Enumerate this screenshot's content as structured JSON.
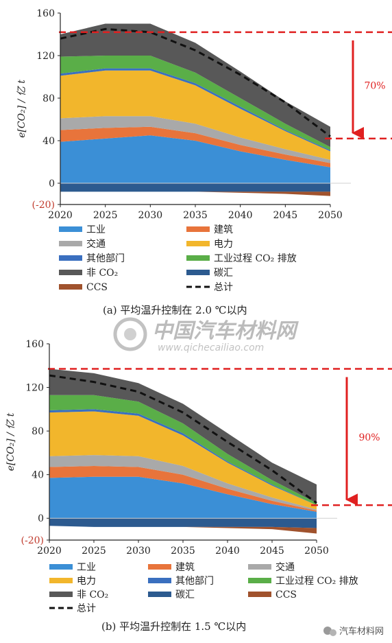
{
  "colors": {
    "industry": "#3b8fd6",
    "building": "#e8743b",
    "transport": "#a9a9a9",
    "power": "#f2b62c",
    "other_sectors": "#3a6fbf",
    "industrial_process": "#5aae48",
    "non_co2": "#585858",
    "carbon_sink": "#2c5a8f",
    "ccs": "#a0522d",
    "reduction_marker": "#e02020",
    "total_line": "#111111"
  },
  "watermark": {
    "cn": "中国汽车材料网",
    "en": "www.qichecailiao.com"
  },
  "wechat_label": "汽车材料网",
  "chart_data": [
    {
      "id": "a",
      "type": "area",
      "caption": "(a) 平均温升控制在 2.0 ℃以内",
      "ylabel": "e[CO₂] / 亿 t",
      "ylim": [
        -20,
        160
      ],
      "yticks": [
        "(-20)",
        "0",
        "40",
        "80",
        "120",
        "160"
      ],
      "x": [
        "2020",
        "2025",
        "2030",
        "2035",
        "2040",
        "2045",
        "2050"
      ],
      "series": [
        {
          "name": "工业",
          "color_key": "industry",
          "side": "pos",
          "values": [
            39,
            42,
            45,
            40,
            30,
            22,
            15
          ]
        },
        {
          "name": "建筑",
          "color_key": "building",
          "side": "pos",
          "values": [
            11,
            10,
            8,
            7,
            6,
            5,
            4
          ]
        },
        {
          "name": "交通",
          "color_key": "transport",
          "side": "pos",
          "values": [
            11,
            11,
            10,
            9,
            7,
            5,
            3
          ]
        },
        {
          "name": "电力",
          "color_key": "power",
          "side": "pos",
          "values": [
            40,
            43,
            43,
            36,
            27,
            17,
            8
          ]
        },
        {
          "name": "其他部门",
          "color_key": "other_sectors",
          "side": "pos",
          "values": [
            2,
            2,
            2,
            2,
            2,
            1,
            1
          ]
        },
        {
          "name": "工业过程 CO₂ 排放",
          "color_key": "industrial_process",
          "side": "pos",
          "values": [
            16,
            12,
            12,
            10,
            8,
            6,
            3
          ]
        },
        {
          "name": "非 CO₂",
          "color_key": "non_co2",
          "side": "pos",
          "values": [
            21,
            30,
            30,
            28,
            25,
            21,
            19
          ]
        },
        {
          "name": "碳汇",
          "color_key": "carbon_sink",
          "side": "neg",
          "values": [
            -8,
            -8,
            -8,
            -8,
            -8,
            -8,
            -8
          ]
        },
        {
          "name": "CCS",
          "color_key": "ccs",
          "side": "neg",
          "values": [
            0,
            0,
            0,
            0,
            -1,
            -2,
            -4
          ]
        }
      ],
      "total": {
        "name": "总计",
        "values": [
          136,
          145,
          142,
          125,
          102,
          76,
          44
        ]
      },
      "reference_high": 142,
      "reference_low": 42,
      "reduction_label": "70%",
      "legend_columns": 2,
      "legend_order": [
        "工业",
        "建筑",
        "交通",
        "电力",
        "其他部门",
        "工业过程 CO₂ 排放",
        "非 CO₂",
        "碳汇",
        "CCS",
        "总计"
      ],
      "grid": false
    },
    {
      "id": "b",
      "type": "area",
      "caption": "(b) 平均温升控制在 1.5 ℃以内",
      "ylabel": "e[CO₂] / 亿 t",
      "ylim": [
        -20,
        160
      ],
      "yticks": [
        "(-20)",
        "0",
        "40",
        "80",
        "120",
        "160"
      ],
      "x": [
        "2020",
        "2025",
        "2030",
        "2035",
        "2040",
        "2045",
        "2050"
      ],
      "series": [
        {
          "name": "工业",
          "color_key": "industry",
          "side": "pos",
          "values": [
            37,
            38,
            38,
            32,
            22,
            13,
            6
          ]
        },
        {
          "name": "建筑",
          "color_key": "building",
          "side": "pos",
          "values": [
            10,
            10,
            9,
            8,
            5,
            3,
            1
          ]
        },
        {
          "name": "交通",
          "color_key": "transport",
          "side": "pos",
          "values": [
            10,
            10,
            10,
            8,
            5,
            3,
            1
          ]
        },
        {
          "name": "电力",
          "color_key": "power",
          "side": "pos",
          "values": [
            40,
            40,
            37,
            28,
            19,
            11,
            4
          ]
        },
        {
          "name": "其他部门",
          "color_key": "other_sectors",
          "side": "pos",
          "values": [
            2,
            2,
            2,
            2,
            1,
            1,
            0
          ]
        },
        {
          "name": "工业过程 CO₂ 排放",
          "color_key": "industrial_process",
          "side": "pos",
          "values": [
            14,
            13,
            11,
            9,
            7,
            4,
            2
          ]
        },
        {
          "name": "非 CO₂",
          "color_key": "non_co2",
          "side": "pos",
          "values": [
            24,
            20,
            17,
            18,
            19,
            16,
            17
          ]
        },
        {
          "name": "碳汇",
          "color_key": "carbon_sink",
          "side": "neg",
          "values": [
            -7,
            -8,
            -8,
            -8,
            -8,
            -8,
            -9
          ]
        },
        {
          "name": "CCS",
          "color_key": "ccs",
          "side": "neg",
          "values": [
            0,
            0,
            0,
            0,
            -1,
            -2,
            -5
          ]
        }
      ],
      "total": {
        "name": "总计",
        "values": [
          131,
          125,
          116,
          97,
          70,
          44,
          14
        ]
      },
      "reference_high": 137,
      "reference_low": 12,
      "reduction_label": "90%",
      "legend_columns": 3,
      "legend_order": [
        "工业",
        "建筑",
        "交通",
        "电力",
        "其他部门",
        "工业过程 CO₂ 排放",
        "非 CO₂",
        "碳汇",
        "CCS",
        "总计"
      ],
      "grid": false
    }
  ]
}
